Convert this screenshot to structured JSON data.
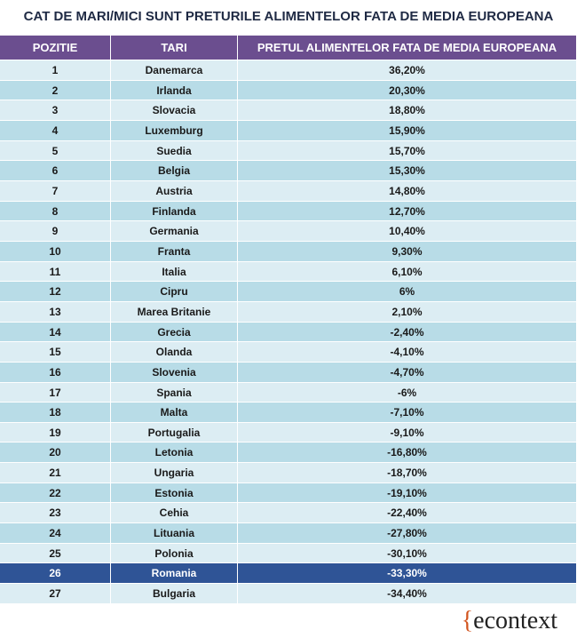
{
  "header": {
    "title": "CAT DE MARI/MICI SUNT PRETURILE ALIMENTELOR FATA DE MEDIA EUROPEANA"
  },
  "table": {
    "columns": [
      "POZITIE",
      "TARI",
      "PRETUL ALIMENTELOR FATA DE MEDIA EUROPEANA"
    ],
    "rows": [
      [
        "1",
        "Danemarca",
        "36,20%"
      ],
      [
        "2",
        "Irlanda",
        "20,30%"
      ],
      [
        "3",
        "Slovacia",
        "18,80%"
      ],
      [
        "4",
        "Luxemburg",
        "15,90%"
      ],
      [
        "5",
        "Suedia",
        "15,70%"
      ],
      [
        "6",
        "Belgia",
        "15,30%"
      ],
      [
        "7",
        "Austria",
        "14,80%"
      ],
      [
        "8",
        "Finlanda",
        "12,70%"
      ],
      [
        "9",
        "Germania",
        "10,40%"
      ],
      [
        "10",
        "Franta",
        "9,30%"
      ],
      [
        "11",
        "Italia",
        "6,10%"
      ],
      [
        "12",
        "Cipru",
        "6%"
      ],
      [
        "13",
        "Marea Britanie",
        "2,10%"
      ],
      [
        "14",
        "Grecia",
        "-2,40%"
      ],
      [
        "15",
        "Olanda",
        "-4,10%"
      ],
      [
        "16",
        "Slovenia",
        "-4,70%"
      ],
      [
        "17",
        "Spania",
        "-6%"
      ],
      [
        "18",
        "Malta",
        "-7,10%"
      ],
      [
        "19",
        "Portugalia",
        "-9,10%"
      ],
      [
        "20",
        "Letonia",
        "-16,80%"
      ],
      [
        "21",
        "Ungaria",
        "-18,70%"
      ],
      [
        "22",
        "Estonia",
        "-19,10%"
      ],
      [
        "23",
        "Cehia",
        "-22,40%"
      ],
      [
        "24",
        "Lituania",
        "-27,80%"
      ],
      [
        "25",
        "Polonia",
        "-30,10%"
      ],
      [
        "26",
        "Romania",
        "-33,30%"
      ],
      [
        "27",
        "Bulgaria",
        "-34,40%"
      ]
    ]
  },
  "footer": {
    "brace": "{",
    "logo": "econtext"
  }
}
